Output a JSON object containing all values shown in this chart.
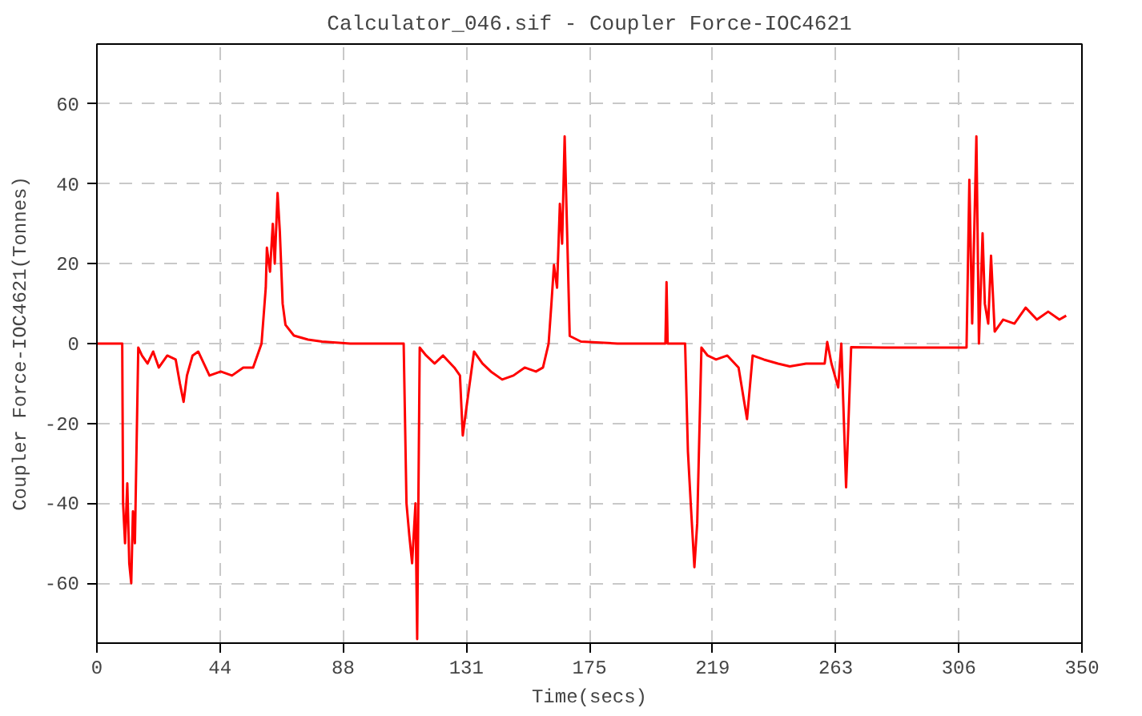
{
  "chart_data": {
    "type": "line",
    "title": "Calculator_046.sif - Coupler Force-IOC4621",
    "xlabel": "Time(secs)",
    "ylabel": "Coupler Force-IOC4621(Tonnes)",
    "xlim": [
      0,
      350
    ],
    "ylim": [
      -75,
      75
    ],
    "xticks": [
      0,
      {
        "value": 43.75,
        "label": "44"
      },
      {
        "value": 87.5,
        "label": "88"
      },
      {
        "value": 131.25,
        "label": "131"
      },
      175,
      {
        "value": 218.75,
        "label": "219"
      },
      {
        "value": 262.5,
        "label": "263"
      },
      {
        "value": 306.25,
        "label": "306"
      },
      350
    ],
    "yticks": [
      -60,
      -40,
      -20,
      0,
      20,
      40,
      60
    ],
    "grid": true,
    "line_style": "solid",
    "series": [
      {
        "color": "#ff0000",
        "x": [
          0,
          9,
          9.3,
          10,
          10.8,
          11.5,
          12.2,
          12.8,
          13.5,
          14.7,
          16,
          18,
          20,
          22,
          25,
          28,
          29.5,
          30.8,
          32,
          34,
          36,
          38,
          40,
          44,
          48,
          52,
          55.5,
          58.5,
          60,
          60.4,
          61.5,
          62.5,
          63.2,
          64.2,
          65,
          66,
          67,
          70,
          75,
          80,
          90,
          109,
          110,
          111,
          112,
          113.2,
          113.8,
          114.7,
          117,
          120,
          123,
          127,
          129,
          130,
          131.5,
          134,
          137,
          140,
          144,
          148,
          152,
          156,
          158.5,
          160.5,
          161.5,
          162.4,
          163.5,
          164.5,
          165.3,
          166.2,
          167,
          168,
          172,
          185,
          202,
          202.4,
          202.8,
          209,
          210,
          211,
          212.3,
          213.3,
          214.8,
          217,
          220,
          224,
          228,
          231,
          233,
          237,
          242,
          246.2,
          252,
          258.6,
          259.5,
          261,
          263.4,
          264.5,
          266.2,
          268,
          280,
          295,
          309,
          310,
          311,
          312.5,
          313.4,
          314.7,
          315.5,
          316.7,
          317.7,
          319,
          322,
          326,
          330,
          334,
          338,
          342,
          344.4
        ],
        "values": [
          0,
          0,
          -40,
          -50,
          -35,
          -55,
          -60,
          -42,
          -50,
          -1,
          -3,
          -5,
          -2,
          -6,
          -3,
          -4,
          -10,
          -14.6,
          -8,
          -3,
          -2,
          -5,
          -8,
          -7,
          -8,
          -6,
          -6,
          0,
          14,
          24,
          18,
          30,
          20,
          37.7,
          28,
          10,
          4.7,
          2,
          1,
          0.5,
          0,
          0,
          -40,
          -48,
          -55,
          -40,
          -74,
          -1,
          -3,
          -5,
          -3,
          -6,
          -8,
          -23,
          -15,
          -2,
          -5,
          -7,
          -9,
          -8,
          -6,
          -7,
          -6,
          0,
          10,
          19.7,
          14,
          35,
          25,
          51.9,
          30,
          1.9,
          0.5,
          0,
          0,
          15.4,
          0,
          0,
          -27,
          -40,
          -56,
          -45,
          -1,
          -3,
          -4,
          -3,
          -6,
          -18.9,
          -3,
          -4,
          -5,
          -5.7,
          -5,
          -5,
          0.4,
          -5,
          -11,
          0,
          -36,
          -0.9,
          -1,
          -1,
          -1,
          41,
          5,
          51.9,
          0,
          27.6,
          10,
          5,
          22,
          3,
          6,
          5,
          9,
          6,
          8,
          6,
          7
        ]
      }
    ]
  }
}
